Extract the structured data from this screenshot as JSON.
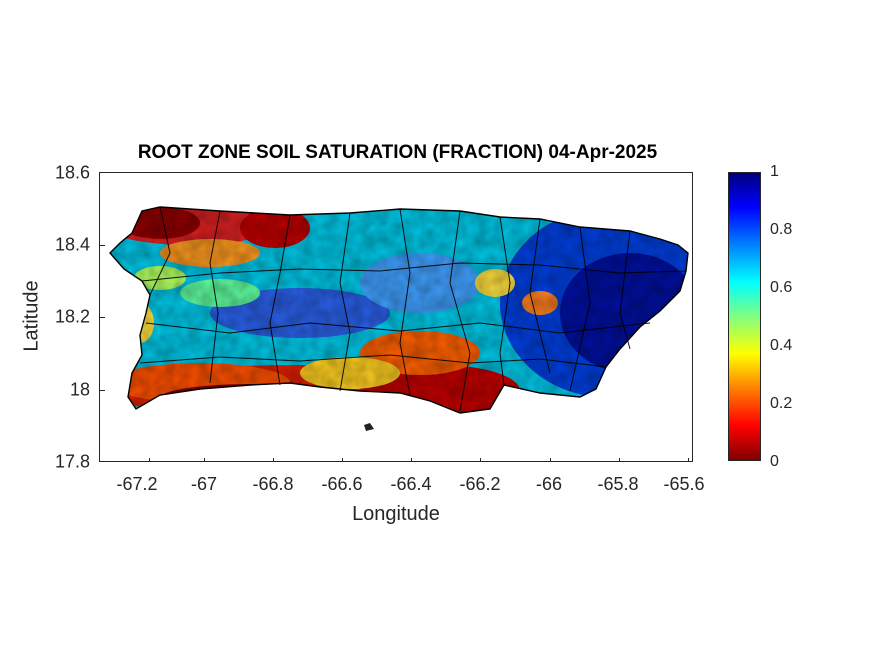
{
  "title": "ROOT ZONE SOIL SATURATION (FRACTION) 04-Apr-2025",
  "xlabel": "Longitude",
  "ylabel": "Latitude",
  "x_ticks": [
    "-67.2",
    "-67",
    "-66.8",
    "-66.6",
    "-66.4",
    "-66.2",
    "-66",
    "-65.8",
    "-65.6"
  ],
  "y_ticks": [
    "18.6",
    "18.4",
    "18.2",
    "18",
    "17.8"
  ],
  "colorbar_ticks": [
    "1",
    "0.8",
    "0.6",
    "0.4",
    "0.2",
    "0"
  ],
  "colormap": "jet",
  "colors": {
    "low": "#800000",
    "mid": "#80ff80",
    "high": "#000080",
    "borders": "#000000"
  }
}
